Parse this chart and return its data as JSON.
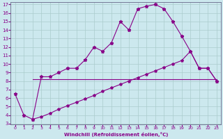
{
  "xlabel": "Windchill (Refroidissement éolien,°C)",
  "bg_color": "#cce8ee",
  "line_color": "#880088",
  "grid_color": "#aacccc",
  "xlim": [
    -0.5,
    23.5
  ],
  "ylim": [
    3,
    17
  ],
  "xticks": [
    0,
    1,
    2,
    3,
    4,
    5,
    6,
    7,
    8,
    9,
    10,
    11,
    12,
    13,
    14,
    15,
    16,
    17,
    18,
    19,
    20,
    21,
    22,
    23
  ],
  "yticks": [
    3,
    4,
    5,
    6,
    7,
    8,
    9,
    10,
    11,
    12,
    13,
    14,
    15,
    16,
    17
  ],
  "line1_x": [
    0,
    1,
    2,
    3,
    4,
    5,
    6,
    7,
    8,
    9,
    10,
    11,
    12,
    13,
    14,
    15,
    16,
    17,
    18,
    19,
    20,
    21,
    22,
    23
  ],
  "line1_y": [
    6.5,
    4.0,
    3.5,
    8.5,
    8.5,
    9.0,
    9.5,
    9.5,
    10.5,
    12.0,
    11.5,
    12.5,
    15.0,
    14.0,
    16.5,
    16.8,
    17.0,
    16.5,
    15.0,
    13.3,
    11.5,
    9.5,
    9.5,
    8.0
  ],
  "line2_x": [
    2,
    23
  ],
  "line2_y": [
    8.2,
    8.2
  ],
  "line3_x": [
    2,
    3,
    4,
    5,
    6,
    7,
    8,
    9,
    10,
    11,
    12,
    13,
    14,
    15,
    16,
    17,
    18,
    19,
    20,
    21,
    22,
    23
  ],
  "line3_y": [
    3.5,
    3.8,
    4.2,
    4.7,
    5.1,
    5.5,
    5.9,
    6.3,
    6.8,
    7.2,
    7.6,
    8.0,
    8.4,
    8.8,
    9.2,
    9.6,
    10.0,
    10.4,
    11.5,
    9.5,
    9.5,
    8.0
  ]
}
